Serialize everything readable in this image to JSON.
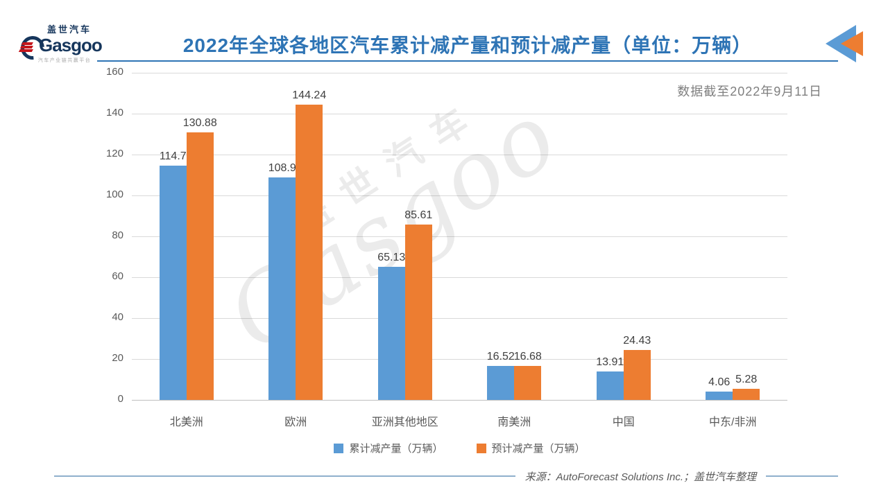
{
  "logo": {
    "cn": "盖世汽车",
    "en": "Gasgoo",
    "tagline": "汽车产业链共赢平台"
  },
  "header": {
    "title": "2022年全球各地区汽车累计减产量和预计减产量（单位：万辆）",
    "title_color": "#2E74B5"
  },
  "watermark": {
    "cn": "盖世汽车",
    "en": "Gasgoo"
  },
  "chart_data": {
    "type": "bar",
    "title": "2022年全球各地区汽车累计减产量和预计减产量（单位：万辆）",
    "annotation": "数据截至2022年9月11日",
    "categories": [
      "北美洲",
      "欧洲",
      "亚洲其他地区",
      "南美洲",
      "中国",
      "中东/非洲"
    ],
    "series": [
      {
        "name": "累计减产量（万辆）",
        "color": "#5B9BD5",
        "values": [
          114.7,
          108.9,
          65.13,
          16.52,
          13.91,
          4.06
        ]
      },
      {
        "name": "预计减产量（万辆）",
        "color": "#ED7D31",
        "values": [
          130.88,
          144.24,
          85.61,
          16.68,
          24.43,
          5.28
        ]
      }
    ],
    "xlabel": "",
    "ylabel": "",
    "ylim": [
      0,
      160
    ],
    "yticks": [
      0,
      20,
      40,
      60,
      80,
      100,
      120,
      140,
      160
    ],
    "grid": true,
    "legend_position": "bottom"
  },
  "footer": {
    "source": "来源：AutoForecast Solutions Inc.；盖世汽车整理"
  }
}
